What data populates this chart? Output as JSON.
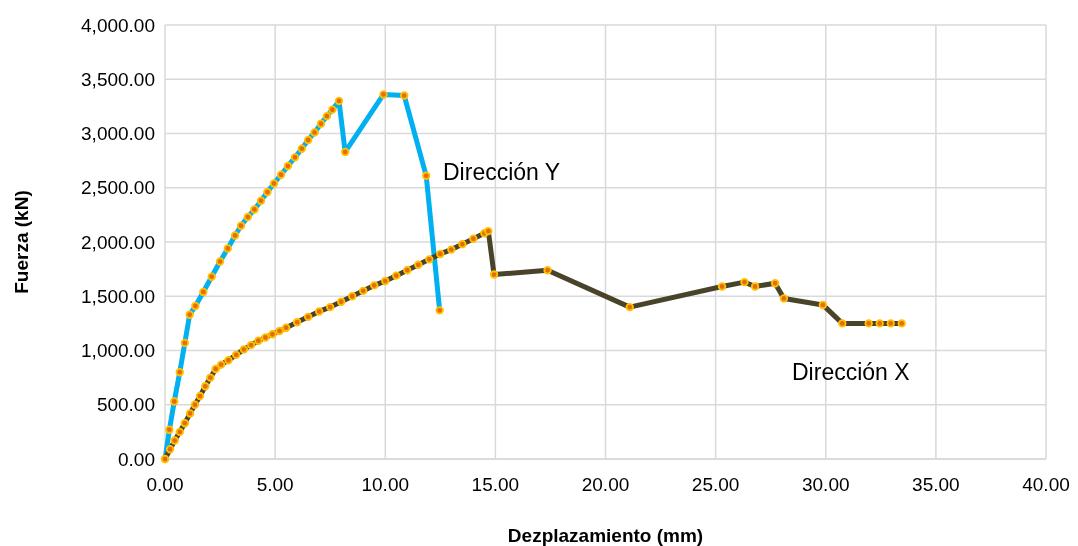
{
  "chart_data": {
    "type": "line",
    "xlabel": "Dezplazamiento (mm)",
    "ylabel": "Fuerza (kN)",
    "xlim": [
      0,
      40
    ],
    "ylim": [
      0,
      4000
    ],
    "xticks": [
      {
        "value": 0,
        "label": "0.00"
      },
      {
        "value": 5,
        "label": "5.00"
      },
      {
        "value": 10,
        "label": "10.00"
      },
      {
        "value": 15,
        "label": "15.00"
      },
      {
        "value": 20,
        "label": "20.00"
      },
      {
        "value": 25,
        "label": "25.00"
      },
      {
        "value": 30,
        "label": "30.00"
      },
      {
        "value": 35,
        "label": "35.00"
      },
      {
        "value": 40,
        "label": "40.00"
      }
    ],
    "yticks": [
      {
        "value": 0,
        "label": "0.00"
      },
      {
        "value": 500,
        "label": "500.00"
      },
      {
        "value": 1000,
        "label": "1,000.00"
      },
      {
        "value": 1500,
        "label": "1,500.00"
      },
      {
        "value": 2000,
        "label": "2,000.00"
      },
      {
        "value": 2500,
        "label": "2,500.00"
      },
      {
        "value": 3000,
        "label": "3,000.00"
      },
      {
        "value": 3500,
        "label": "3,500.00"
      },
      {
        "value": 4000,
        "label": "4,000.00"
      }
    ],
    "grid": true,
    "marker": "circle",
    "line_style": "solid",
    "series": [
      {
        "name": "Dirección Y",
        "color": "#00b0f0",
        "x": [
          0,
          0.2,
          0.42,
          0.67,
          0.9,
          1.12,
          1.38,
          1.74,
          2.12,
          2.5,
          2.85,
          3.18,
          3.45,
          3.76,
          4.06,
          4.36,
          4.65,
          4.95,
          5.27,
          5.58,
          5.9,
          6.21,
          6.5,
          6.79,
          7.08,
          7.35,
          7.6,
          7.9,
          8.18,
          9.92,
          10.86,
          11.86,
          12.47
        ],
        "values": [
          0,
          270,
          530,
          800,
          1070,
          1330,
          1410,
          1540,
          1680,
          1820,
          1940,
          2060,
          2150,
          2230,
          2300,
          2380,
          2460,
          2540,
          2620,
          2700,
          2780,
          2860,
          2940,
          3010,
          3090,
          3160,
          3220,
          3300,
          2830,
          3360,
          3350,
          2610,
          1370
        ]
      },
      {
        "name": "Dirección X",
        "color": "#494429",
        "x": [
          0,
          0.23,
          0.44,
          0.67,
          0.9,
          1.14,
          1.36,
          1.59,
          1.83,
          2.06,
          2.3,
          2.55,
          2.88,
          3.23,
          3.58,
          3.91,
          4.24,
          4.56,
          4.88,
          5.2,
          5.5,
          6,
          6.5,
          7,
          7.5,
          8,
          8.5,
          9,
          9.5,
          10,
          10.5,
          11,
          11.5,
          12,
          12.5,
          13,
          13.5,
          14,
          14.5,
          14.68,
          14.94,
          17.37,
          21.1,
          25.29,
          26.31,
          26.79,
          27.7,
          28.1,
          29.87,
          30.75,
          31.95,
          32.45,
          32.95,
          33.45
        ],
        "values": [
          0,
          90,
          170,
          250,
          330,
          420,
          500,
          580,
          670,
          750,
          830,
          870,
          910,
          960,
          1010,
          1050,
          1090,
          1120,
          1150,
          1180,
          1210,
          1260,
          1310,
          1360,
          1400,
          1450,
          1500,
          1550,
          1600,
          1640,
          1690,
          1740,
          1790,
          1840,
          1890,
          1930,
          1980,
          2030,
          2080,
          2100,
          1700,
          1740,
          1400,
          1590,
          1630,
          1590,
          1620,
          1480,
          1420,
          1250,
          1250,
          1250,
          1250,
          1250
        ]
      }
    ]
  }
}
